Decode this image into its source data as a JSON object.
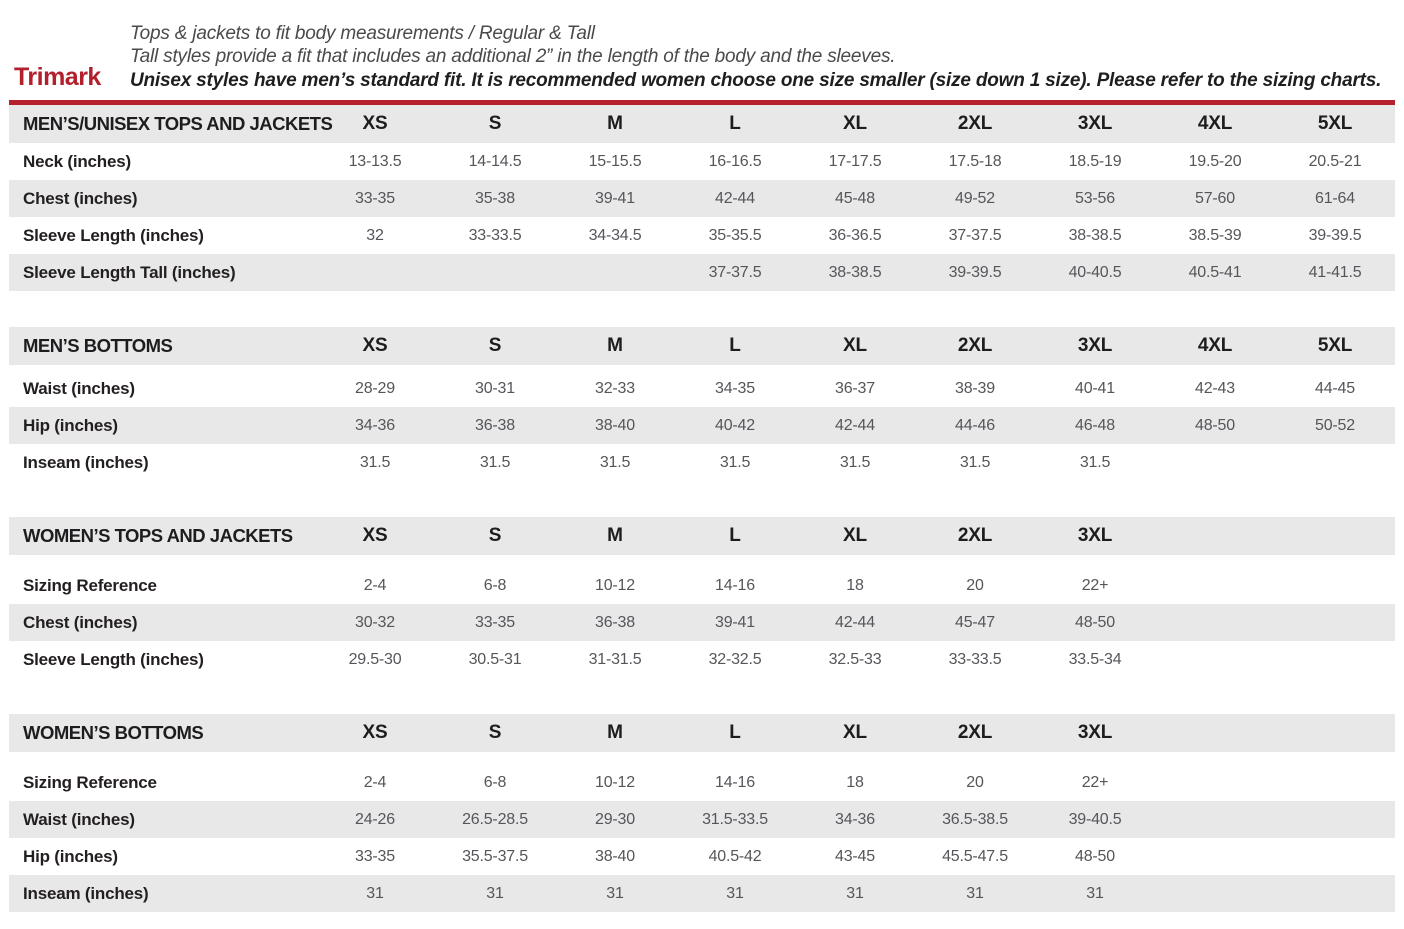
{
  "brand": "Trimark",
  "intro": {
    "line1": "Tops & jackets to fit body measurements / Regular & Tall",
    "line2": "Tall styles provide a fit that includes an additional 2” in the length of the body and the sleeves.",
    "line3": "Unisex styles have men’s standard fit. It is recommended women choose one size smaller (size down 1 size).  Please refer to the sizing charts."
  },
  "colors": {
    "brand_red": "#b1202c",
    "rule_red": "#b5202c",
    "row_stripe_gray": "#e8e8e9",
    "label_black": "#231f20",
    "value_gray": "#55565a"
  },
  "tables": [
    {
      "title": "MEN’S/UNISEX TOPS AND JACKETS",
      "sizes": [
        "XS",
        "S",
        "M",
        "L",
        "XL",
        "2XL",
        "3XL",
        "4XL",
        "5XL"
      ],
      "rows": [
        {
          "label": "Neck (inches)",
          "values": [
            "13-13.5",
            "14-14.5",
            "15-15.5",
            "16-16.5",
            "17-17.5",
            "17.5-18",
            "18.5-19",
            "19.5-20",
            "20.5-21"
          ]
        },
        {
          "label": "Chest (inches)",
          "values": [
            "33-35",
            "35-38",
            "39-41",
            "42-44",
            "45-48",
            "49-52",
            "53-56",
            "57-60",
            "61-64"
          ]
        },
        {
          "label": "Sleeve Length (inches)",
          "values": [
            "32",
            "33-33.5",
            "34-34.5",
            "35-35.5",
            "36-36.5",
            "37-37.5",
            "38-38.5",
            "38.5-39",
            "39-39.5"
          ]
        },
        {
          "label": "Sleeve Length Tall (inches)",
          "values": [
            "",
            "",
            "",
            "37-37.5",
            "38-38.5",
            "39-39.5",
            "40-40.5",
            "40.5-41",
            "41-41.5"
          ]
        }
      ]
    },
    {
      "title": "MEN’S BOTTOMS",
      "sizes": [
        "XS",
        "S",
        "M",
        "L",
        "XL",
        "2XL",
        "3XL",
        "4XL",
        "5XL"
      ],
      "rows": [
        {
          "label": "Waist (inches)",
          "values": [
            "28-29",
            "30-31",
            "32-33",
            "34-35",
            "36-37",
            "38-39",
            "40-41",
            "42-43",
            "44-45"
          ]
        },
        {
          "label": "Hip (inches)",
          "values": [
            "34-36",
            "36-38",
            "38-40",
            "40-42",
            "42-44",
            "44-46",
            "46-48",
            "48-50",
            "50-52"
          ]
        },
        {
          "label": "Inseam (inches)",
          "values": [
            "31.5",
            "31.5",
            "31.5",
            "31.5",
            "31.5",
            "31.5",
            "31.5",
            "",
            ""
          ]
        }
      ]
    },
    {
      "title": "WOMEN’S TOPS AND JACKETS",
      "sizes": [
        "XS",
        "S",
        "M",
        "L",
        "XL",
        "2XL",
        "3XL"
      ],
      "rows": [
        {
          "label": "Sizing Reference",
          "values": [
            "2-4",
            "6-8",
            "10-12",
            "14-16",
            "18",
            "20",
            "22+"
          ]
        },
        {
          "label": "Chest (inches)",
          "values": [
            "30-32",
            "33-35",
            "36-38",
            "39-41",
            "42-44",
            "45-47",
            "48-50"
          ]
        },
        {
          "label": "Sleeve Length (inches)",
          "values": [
            "29.5-30",
            "30.5-31",
            "31-31.5",
            "32-32.5",
            "32.5-33",
            "33-33.5",
            "33.5-34"
          ]
        }
      ]
    },
    {
      "title": "WOMEN’S BOTTOMS",
      "sizes": [
        "XS",
        "S",
        "M",
        "L",
        "XL",
        "2XL",
        "3XL"
      ],
      "rows": [
        {
          "label": "Sizing Reference",
          "values": [
            "2-4",
            "6-8",
            "10-12",
            "14-16",
            "18",
            "20",
            "22+"
          ]
        },
        {
          "label": "Waist (inches)",
          "values": [
            "24-26",
            "26.5-28.5",
            "29-30",
            "31.5-33.5",
            "34-36",
            "36.5-38.5",
            "39-40.5"
          ]
        },
        {
          "label": "Hip (inches)",
          "values": [
            "33-35",
            "35.5-37.5",
            "38-40",
            "40.5-42",
            "43-45",
            "45.5-47.5",
            "48-50"
          ]
        },
        {
          "label": "Inseam (inches)",
          "values": [
            "31",
            "31",
            "31",
            "31",
            "31",
            "31",
            "31"
          ]
        }
      ]
    }
  ]
}
